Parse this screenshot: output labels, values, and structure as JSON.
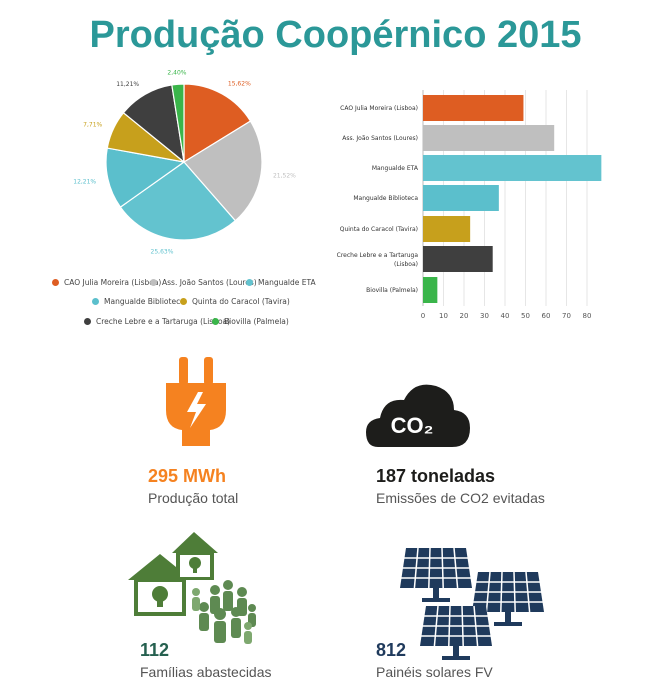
{
  "title": "Produção Coopérnico 2015",
  "colors": {
    "title": "#2b9898",
    "orange": "#f58220",
    "dark_green_text": "#25604f",
    "icon_dark": "#1d1d1b",
    "house_green": "#4e7d38",
    "panel_navy": "#1f3a5c"
  },
  "chart_data": [
    {
      "type": "pie",
      "categories": [
        "CAO Julia Moreira (Lisboa)",
        "Ass. João Santos (Loures)",
        "Mangualde ETA",
        "Mangualde Biblioteca",
        "Quinta do Caracol (Tavira)",
        "Creche Lebre e a Tartaruga (Lisboa)",
        "Biovilla (Palmela)"
      ],
      "values": [
        15.62,
        21.52,
        25.63,
        12.21,
        7.71,
        11.21,
        2.4
      ],
      "value_labels": [
        "15,62%",
        "21,52%",
        "25,63%",
        "12,21%",
        "7,71%",
        "11,21%",
        "2,40%"
      ],
      "colors": [
        "#de5d22",
        "#bfbfbf",
        "#63c3cf",
        "#5bbfcc",
        "#c7a01c",
        "#3f3f3f",
        "#3ab54a"
      ],
      "legend": "bottom"
    },
    {
      "type": "bar",
      "orientation": "horizontal",
      "categories": [
        "CAO Julia Moreira (Lisboa)",
        "Ass. João Santos (Loures)",
        "Mangualde ETA",
        "Mangualde Biblioteca",
        "Quinta do Caracol (Tavira)",
        "Creche Lebre e a Tartaruga (Lisboa)",
        "Biovilla (Palmela)"
      ],
      "values": [
        49,
        64,
        87,
        37,
        23,
        34,
        7
      ],
      "colors": [
        "#de5d22",
        "#bfbfbf",
        "#63c3cf",
        "#5bbfcc",
        "#c7a01c",
        "#3f3f3f",
        "#3ab54a"
      ],
      "xlim": [
        0,
        90
      ],
      "xticks": [
        "0",
        "10",
        "20",
        "30",
        "40",
        "50",
        "60",
        "70",
        "80"
      ],
      "grid": true
    }
  ],
  "stats": [
    {
      "value": "295 MWh",
      "label": "Produção total",
      "icon": "power-plug-icon"
    },
    {
      "value": "187 toneladas",
      "label": "Emissões de CO2 evitadas",
      "icon": "co2-cloud-icon",
      "icon_text": "CO₂"
    },
    {
      "value": "112",
      "label": "Famílias abastecidas",
      "icon": "houses-people-icon"
    },
    {
      "value": "812",
      "label": "Painéis solares FV",
      "icon": "solar-panels-icon"
    }
  ]
}
